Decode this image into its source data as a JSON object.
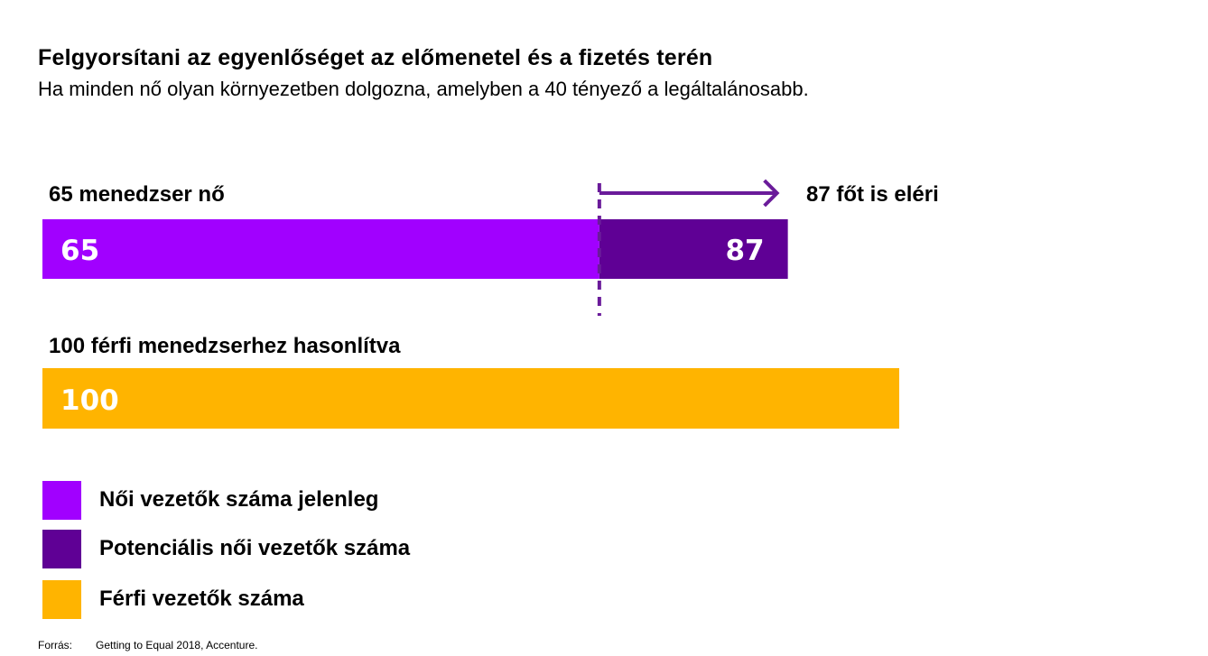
{
  "title": "Felgyorsítani az egyenlőséget az előmenetel és a fizetés terén",
  "subtitle": "Ha minden nő olyan környezetben dolgozna, amelyben a 40 tényező a legáltalánosabb.",
  "colors": {
    "current_women": "#A100FF",
    "potential_women": "#5F0095",
    "men": "#FFB400",
    "arrow": "#6A1B9A"
  },
  "chart_data": {
    "type": "bar",
    "orientation": "horizontal",
    "bars": [
      {
        "label": "65 menedzser nő",
        "segments": [
          {
            "value": 65,
            "label": "65",
            "series": "Női vezetők száma jelenleg"
          },
          {
            "value": 87,
            "label": "87",
            "series": "Potenciális női vezetők száma"
          }
        ]
      },
      {
        "label": "100 férfi menedzserhez hasonlítva",
        "segments": [
          {
            "value": 100,
            "label": "100",
            "series": "Férfi vezetők száma"
          }
        ]
      }
    ],
    "annotation": "87 főt is eléri",
    "legend": [
      {
        "label": "Női vezetők száma jelenleg",
        "color": "#A100FF"
      },
      {
        "label": "Potenciális női vezetők száma",
        "color": "#5F0095"
      },
      {
        "label": "Férfi vezetők száma",
        "color": "#FFB400"
      }
    ],
    "xlim": [
      0,
      100
    ],
    "grid": false,
    "legend_position": "bottom-left"
  },
  "source": {
    "key": "Forrás:",
    "text": "Getting to Equal 2018, Accenture."
  }
}
